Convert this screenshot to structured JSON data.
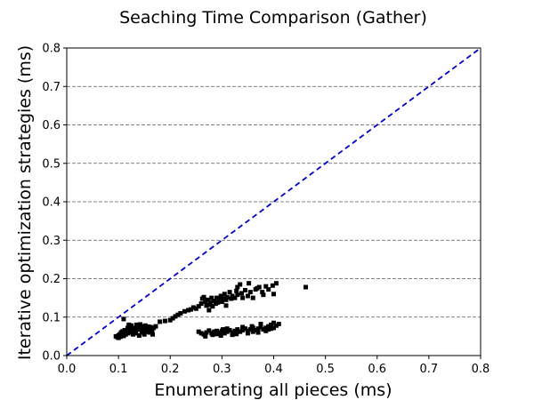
{
  "chart_data": {
    "type": "scatter",
    "title": "Seaching Time Comparison (Gather)",
    "xlabel": "Enumerating all pieces (ms)",
    "ylabel": "Iterative optimization strategies (ms)",
    "xlim": [
      0.0,
      0.8
    ],
    "ylim": [
      0.0,
      0.8
    ],
    "x_ticks": [
      "0.0",
      "0.1",
      "0.2",
      "0.3",
      "0.4",
      "0.5",
      "0.6",
      "0.7",
      "0.8"
    ],
    "y_ticks": [
      "0.0",
      "0.1",
      "0.2",
      "0.3",
      "0.4",
      "0.5",
      "0.6",
      "0.7",
      "0.8"
    ],
    "grid": "horizontal-dashed",
    "colors": {
      "points": "#000000",
      "reference_line": "#0000cc",
      "grid": "#555555"
    },
    "reference_line": {
      "from": [
        0.0,
        0.0
      ],
      "to": [
        0.8,
        0.8
      ],
      "style": "dashed"
    },
    "series": [
      {
        "marker": "square",
        "points": [
          [
            0.095,
            0.05
          ],
          [
            0.098,
            0.048
          ],
          [
            0.1,
            0.052
          ],
          [
            0.102,
            0.055
          ],
          [
            0.104,
            0.049
          ],
          [
            0.106,
            0.053
          ],
          [
            0.108,
            0.057
          ],
          [
            0.11,
            0.051
          ],
          [
            0.112,
            0.06
          ],
          [
            0.114,
            0.055
          ],
          [
            0.116,
            0.062
          ],
          [
            0.118,
            0.058
          ],
          [
            0.12,
            0.065
          ],
          [
            0.122,
            0.06
          ],
          [
            0.124,
            0.068
          ],
          [
            0.126,
            0.063
          ],
          [
            0.128,
            0.07
          ],
          [
            0.13,
            0.066
          ],
          [
            0.132,
            0.072
          ],
          [
            0.134,
            0.067
          ],
          [
            0.136,
            0.074
          ],
          [
            0.138,
            0.07
          ],
          [
            0.14,
            0.075
          ],
          [
            0.142,
            0.068
          ],
          [
            0.144,
            0.071
          ],
          [
            0.146,
            0.076
          ],
          [
            0.148,
            0.069
          ],
          [
            0.15,
            0.073
          ],
          [
            0.152,
            0.078
          ],
          [
            0.155,
            0.072
          ],
          [
            0.158,
            0.075
          ],
          [
            0.16,
            0.07
          ],
          [
            0.162,
            0.074
          ],
          [
            0.165,
            0.065
          ],
          [
            0.168,
            0.072
          ],
          [
            0.172,
            0.076
          ],
          [
            0.12,
            0.08
          ],
          [
            0.125,
            0.078
          ],
          [
            0.135,
            0.08
          ],
          [
            0.145,
            0.06
          ],
          [
            0.15,
            0.055
          ],
          [
            0.16,
            0.06
          ],
          [
            0.11,
            0.095
          ],
          [
            0.14,
            0.052
          ],
          [
            0.118,
            0.072
          ],
          [
            0.112,
            0.066
          ],
          [
            0.105,
            0.06
          ],
          [
            0.128,
            0.055
          ],
          [
            0.134,
            0.058
          ],
          [
            0.156,
            0.062
          ],
          [
            0.166,
            0.055
          ],
          [
            0.1,
            0.046
          ],
          [
            0.108,
            0.063
          ],
          [
            0.142,
            0.081
          ],
          [
            0.152,
            0.066
          ],
          [
            0.18,
            0.088
          ],
          [
            0.19,
            0.09
          ],
          [
            0.2,
            0.092
          ],
          [
            0.205,
            0.097
          ],
          [
            0.21,
            0.102
          ],
          [
            0.215,
            0.106
          ],
          [
            0.22,
            0.11
          ],
          [
            0.228,
            0.115
          ],
          [
            0.235,
            0.118
          ],
          [
            0.24,
            0.12
          ],
          [
            0.245,
            0.125
          ],
          [
            0.25,
            0.122
          ],
          [
            0.255,
            0.128
          ],
          [
            0.26,
            0.135
          ],
          [
            0.262,
            0.148
          ],
          [
            0.265,
            0.152
          ],
          [
            0.268,
            0.14
          ],
          [
            0.27,
            0.13
          ],
          [
            0.272,
            0.145
          ],
          [
            0.275,
            0.132
          ],
          [
            0.278,
            0.138
          ],
          [
            0.28,
            0.15
          ],
          [
            0.282,
            0.128
          ],
          [
            0.285,
            0.142
          ],
          [
            0.288,
            0.135
          ],
          [
            0.29,
            0.15
          ],
          [
            0.292,
            0.138
          ],
          [
            0.295,
            0.145
          ],
          [
            0.298,
            0.155
          ],
          [
            0.3,
            0.14
          ],
          [
            0.302,
            0.148
          ],
          [
            0.305,
            0.16
          ],
          [
            0.308,
            0.145
          ],
          [
            0.31,
            0.152
          ],
          [
            0.315,
            0.165
          ],
          [
            0.318,
            0.148
          ],
          [
            0.32,
            0.155
          ],
          [
            0.325,
            0.15
          ],
          [
            0.328,
            0.168
          ],
          [
            0.33,
            0.158
          ],
          [
            0.335,
            0.185
          ],
          [
            0.338,
            0.162
          ],
          [
            0.34,
            0.15
          ],
          [
            0.345,
            0.17
          ],
          [
            0.35,
            0.155
          ],
          [
            0.352,
            0.188
          ],
          [
            0.355,
            0.165
          ],
          [
            0.36,
            0.15
          ],
          [
            0.365,
            0.172
          ],
          [
            0.368,
            0.175
          ],
          [
            0.372,
            0.178
          ],
          [
            0.378,
            0.165
          ],
          [
            0.38,
            0.158
          ],
          [
            0.385,
            0.18
          ],
          [
            0.39,
            0.172
          ],
          [
            0.398,
            0.182
          ],
          [
            0.405,
            0.188
          ],
          [
            0.4,
            0.16
          ],
          [
            0.33,
            0.178
          ],
          [
            0.308,
            0.13
          ],
          [
            0.275,
            0.118
          ],
          [
            0.462,
            0.178
          ],
          [
            0.255,
            0.062
          ],
          [
            0.26,
            0.058
          ],
          [
            0.265,
            0.055
          ],
          [
            0.27,
            0.06
          ],
          [
            0.275,
            0.065
          ],
          [
            0.28,
            0.058
          ],
          [
            0.285,
            0.062
          ],
          [
            0.29,
            0.056
          ],
          [
            0.295,
            0.06
          ],
          [
            0.3,
            0.064
          ],
          [
            0.305,
            0.058
          ],
          [
            0.31,
            0.062
          ],
          [
            0.315,
            0.066
          ],
          [
            0.32,
            0.06
          ],
          [
            0.325,
            0.064
          ],
          [
            0.33,
            0.068
          ],
          [
            0.335,
            0.062
          ],
          [
            0.34,
            0.066
          ],
          [
            0.345,
            0.07
          ],
          [
            0.35,
            0.064
          ],
          [
            0.355,
            0.068
          ],
          [
            0.36,
            0.072
          ],
          [
            0.365,
            0.066
          ],
          [
            0.37,
            0.07
          ],
          [
            0.375,
            0.074
          ],
          [
            0.38,
            0.068
          ],
          [
            0.385,
            0.072
          ],
          [
            0.39,
            0.076
          ],
          [
            0.395,
            0.08
          ],
          [
            0.4,
            0.072
          ],
          [
            0.405,
            0.078
          ],
          [
            0.41,
            0.082
          ],
          [
            0.4,
            0.085
          ],
          [
            0.39,
            0.068
          ],
          [
            0.37,
            0.06
          ],
          [
            0.34,
            0.074
          ],
          [
            0.31,
            0.07
          ],
          [
            0.29,
            0.064
          ],
          [
            0.282,
            0.054
          ],
          [
            0.298,
            0.052
          ],
          [
            0.32,
            0.054
          ],
          [
            0.35,
            0.058
          ],
          [
            0.36,
            0.062
          ],
          [
            0.385,
            0.064
          ],
          [
            0.268,
            0.05
          ],
          [
            0.302,
            0.068
          ],
          [
            0.328,
            0.056
          ],
          [
            0.358,
            0.076
          ],
          [
            0.375,
            0.082
          ],
          [
            0.395,
            0.07
          ]
        ]
      }
    ]
  }
}
